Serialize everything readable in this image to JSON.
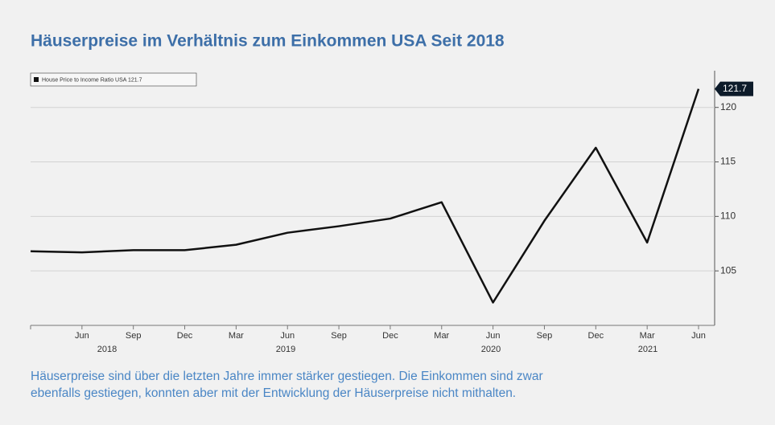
{
  "chart_data": {
    "type": "line",
    "title": "Häuserpreise im Verhältnis zum Einkommen USA Seit 2018",
    "categories": [
      null,
      "Jun",
      "Sep",
      "Dec",
      "Mar",
      "Jun",
      "Sep",
      "Dec",
      "Mar",
      "Jun",
      "Sep",
      "Dec",
      "Mar",
      "Jun"
    ],
    "years": [
      "2018",
      "2019",
      "2020",
      "2021"
    ],
    "series": [
      {
        "name": "House Price to Income Ratio USA 121.7",
        "color": "#111111",
        "values": [
          106.8,
          106.7,
          106.9,
          106.9,
          107.4,
          108.5,
          109.1,
          109.8,
          111.3,
          102.1,
          109.6,
          116.3,
          107.6,
          121.7
        ]
      }
    ],
    "ylim": [
      100,
      123
    ],
    "yticks": [
      105,
      110,
      115,
      120
    ],
    "grid": true,
    "caption": [
      "Häuserpreise sind über die letzten Jahre immer stärker gestiegen. Die Einkommen sind zwar",
      "ebenfalls gestiegen, konnten aber mit der Entwicklung der Häuserpreise nicht mithalten."
    ]
  }
}
